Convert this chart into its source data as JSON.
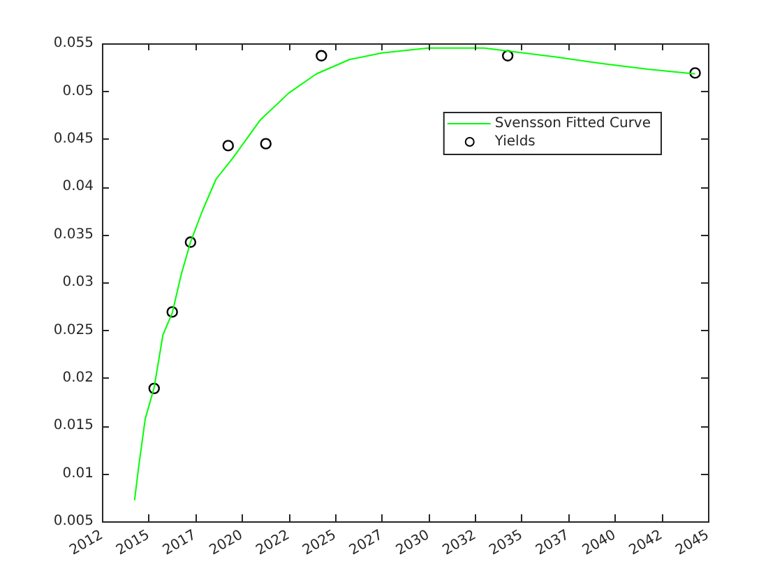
{
  "chart_data": {
    "type": "line",
    "xlim": [
      2012.5,
      2045
    ],
    "xticks": [
      {
        "value": 2012.5,
        "label": "2012"
      },
      2015,
      {
        "value": 2017.5,
        "label": "2017"
      },
      2020,
      {
        "value": 2022.5,
        "label": "2022"
      },
      2025,
      {
        "value": 2027.5,
        "label": "2027"
      },
      2030,
      {
        "value": 2032.5,
        "label": "2032"
      },
      2035,
      {
        "value": 2037.5,
        "label": "2037"
      },
      2040,
      {
        "value": 2042.5,
        "label": "2042"
      },
      2045
    ],
    "ylim": [
      0.005,
      0.055
    ],
    "yticks": [
      0.005,
      0.01,
      0.015,
      0.02,
      0.025,
      0.03,
      0.035,
      0.04,
      0.045,
      0.05,
      0.055
    ],
    "grid": false,
    "legend": "top right",
    "series": [
      {
        "name": "Svensson Fitted Curve",
        "color": "#00ff00",
        "marker": "none",
        "line_style": "solid",
        "x": [
          2014.25,
          2014.45,
          2014.82,
          2015.3,
          2015.77,
          2016.27,
          2016.75,
          2017.25,
          2017.87,
          2018.62,
          2019.52,
          2021.0,
          2022.52,
          2024.0,
          2025.77,
          2027.52,
          2030.0,
          2033.0,
          2034.26,
          2036.76,
          2039.26,
          2041.76,
          2044.31
        ],
        "values": [
          0.0072,
          0.0104,
          0.0157,
          0.019,
          0.0245,
          0.0268,
          0.0308,
          0.0342,
          0.0374,
          0.0408,
          0.043,
          0.047,
          0.0498,
          0.0518,
          0.0533,
          0.054,
          0.0545,
          0.0545,
          0.0542,
          0.0536,
          0.0529,
          0.0523,
          0.0518
        ]
      },
      {
        "name": "Yields",
        "type": "scatter",
        "color": "#000000",
        "marker": "circle",
        "x": [
          2015.3,
          2016.27,
          2017.25,
          2019.27,
          2021.29,
          2024.27,
          2034.26,
          2044.31
        ],
        "values": [
          0.0189,
          0.0269,
          0.0342,
          0.0443,
          0.0445,
          0.0537,
          0.0537,
          0.0519
        ]
      }
    ]
  }
}
